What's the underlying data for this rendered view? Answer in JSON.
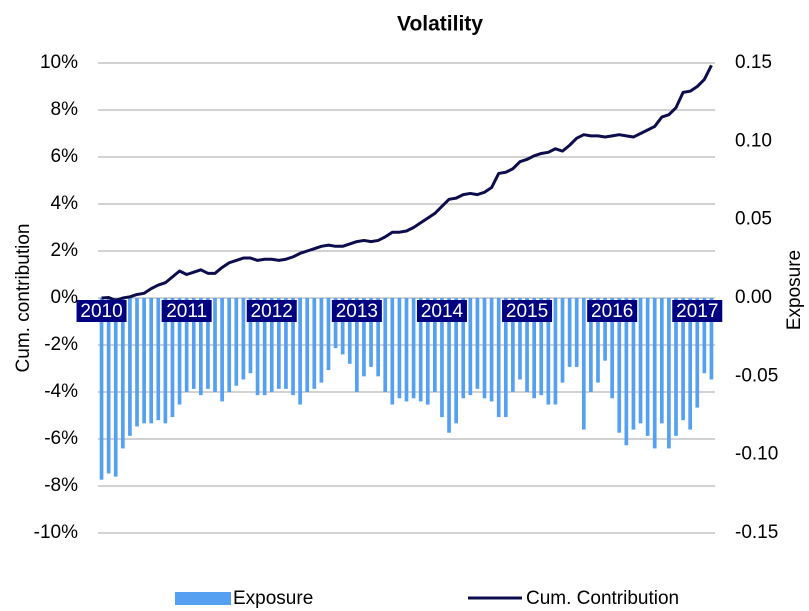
{
  "chart_data": {
    "type": "combo",
    "title": "Volatility",
    "ylabel": "Cum. contribution",
    "y2label": "Exposure",
    "categories": [
      "2010",
      null,
      null,
      null,
      null,
      null,
      null,
      null,
      null,
      null,
      null,
      null,
      "2011",
      null,
      null,
      null,
      null,
      null,
      null,
      null,
      null,
      null,
      null,
      null,
      "2012",
      null,
      null,
      null,
      null,
      null,
      null,
      null,
      null,
      null,
      null,
      null,
      "2013",
      null,
      null,
      null,
      null,
      null,
      null,
      null,
      null,
      null,
      null,
      null,
      "2014",
      null,
      null,
      null,
      null,
      null,
      null,
      null,
      null,
      null,
      null,
      null,
      "2015",
      null,
      null,
      null,
      null,
      null,
      null,
      null,
      null,
      null,
      null,
      null,
      "2016",
      null,
      null,
      null,
      null,
      null,
      null,
      null,
      null,
      null,
      null,
      null,
      "2017",
      null,
      null
    ],
    "series": [
      {
        "name": "Exposure",
        "type": "bar",
        "axis": "y2",
        "color": "#55a0f0",
        "values": [
          -0.116,
          -0.112,
          -0.114,
          -0.096,
          -0.088,
          -0.082,
          -0.08,
          -0.08,
          -0.078,
          -0.08,
          -0.076,
          -0.068,
          -0.06,
          -0.058,
          -0.062,
          -0.058,
          -0.06,
          -0.066,
          -0.06,
          -0.056,
          -0.052,
          -0.048,
          -0.062,
          -0.062,
          -0.06,
          -0.058,
          -0.058,
          -0.062,
          -0.068,
          -0.06,
          -0.058,
          -0.054,
          -0.046,
          -0.032,
          -0.036,
          -0.042,
          -0.06,
          -0.05,
          -0.044,
          -0.05,
          -0.06,
          -0.068,
          -0.064,
          -0.066,
          -0.064,
          -0.066,
          -0.068,
          -0.06,
          -0.076,
          -0.086,
          -0.08,
          -0.064,
          -0.062,
          -0.058,
          -0.064,
          -0.066,
          -0.076,
          -0.076,
          -0.06,
          -0.052,
          -0.06,
          -0.064,
          -0.062,
          -0.068,
          -0.068,
          -0.054,
          -0.044,
          -0.044,
          -0.084,
          -0.06,
          -0.054,
          -0.04,
          -0.064,
          -0.086,
          -0.094,
          -0.084,
          -0.08,
          -0.088,
          -0.096,
          -0.08,
          -0.096,
          -0.088,
          -0.078,
          -0.084,
          -0.07,
          -0.048,
          -0.052
        ]
      },
      {
        "name": "Cum. Contribution",
        "type": "line",
        "color": "#0d0d4d",
        "values": [
          0,
          0.02,
          -0.1,
          0,
          0.05,
          0.15,
          0.2,
          0.4,
          0.55,
          0.65,
          0.9,
          1.15,
          1.0,
          1.1,
          1.2,
          1.05,
          1.05,
          1.3,
          1.5,
          1.6,
          1.7,
          1.7,
          1.6,
          1.65,
          1.65,
          1.6,
          1.65,
          1.75,
          1.9,
          2.0,
          2.1,
          2.2,
          2.25,
          2.2,
          2.2,
          2.3,
          2.4,
          2.45,
          2.4,
          2.45,
          2.6,
          2.8,
          2.8,
          2.85,
          3.0,
          3.2,
          3.4,
          3.6,
          3.9,
          4.2,
          4.25,
          4.4,
          4.45,
          4.4,
          4.5,
          4.7,
          5.3,
          5.35,
          5.5,
          5.8,
          5.9,
          6.05,
          6.15,
          6.2,
          6.35,
          6.25,
          6.5,
          6.8,
          6.95,
          6.9,
          6.9,
          6.85,
          6.9,
          6.95,
          6.9,
          6.85,
          7.0,
          7.15,
          7.3,
          7.7,
          7.8,
          8.1,
          8.75,
          8.8,
          9.0,
          9.3,
          9.9
        ]
      }
    ],
    "ylim": [
      -10,
      10
    ],
    "yticks": [
      {
        "value": -10,
        "label": "-10%"
      },
      {
        "value": -8,
        "label": "-8%"
      },
      {
        "value": -6,
        "label": "-6%"
      },
      {
        "value": -4,
        "label": "-4%"
      },
      {
        "value": -2,
        "label": "-2%"
      },
      {
        "value": 0,
        "label": "0%"
      },
      {
        "value": 2,
        "label": "2%"
      },
      {
        "value": 4,
        "label": "4%"
      },
      {
        "value": 6,
        "label": "6%"
      },
      {
        "value": 8,
        "label": "8%"
      },
      {
        "value": 10,
        "label": "10%"
      }
    ],
    "y2lim": [
      -0.15,
      0.15
    ],
    "y2ticks": [
      -0.15,
      {
        "value": -0.1,
        "label": "-0.10"
      },
      -0.05,
      {
        "value": 0,
        "label": "0.00"
      },
      0.05,
      {
        "value": 0.1,
        "label": "0.10"
      },
      0.15
    ],
    "grid": true,
    "legend": "bottom"
  }
}
